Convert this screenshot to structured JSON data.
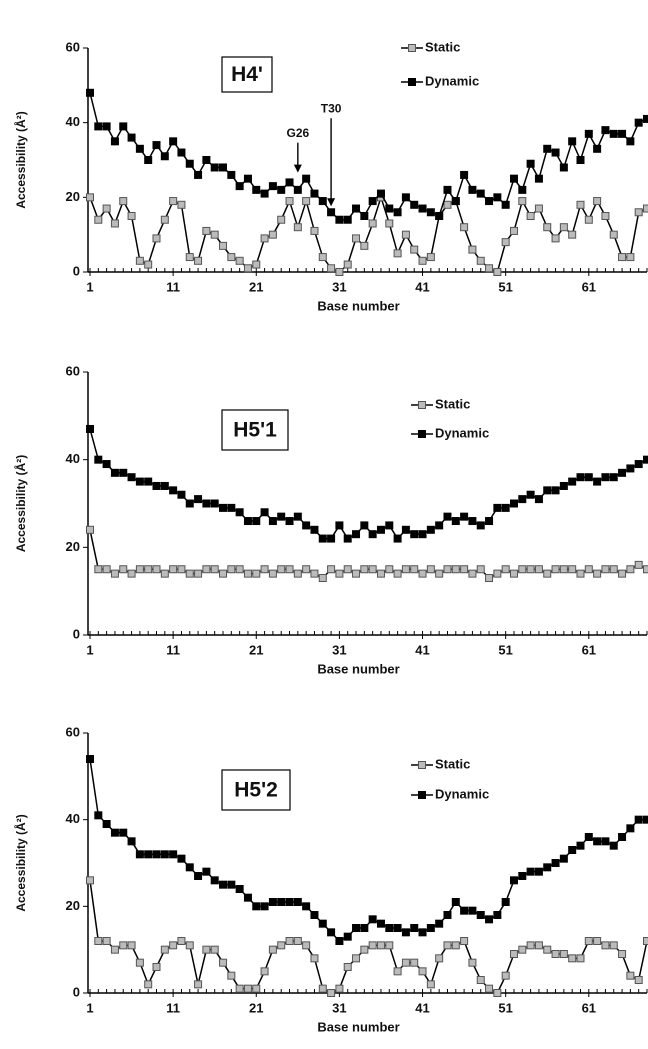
{
  "chart_data": [
    {
      "type": "line",
      "title": "H4'",
      "xlabel": "Base number",
      "ylabel": "Accessibility (Å²)",
      "x": [
        1,
        2,
        3,
        4,
        5,
        6,
        7,
        8,
        9,
        10,
        11,
        12,
        13,
        14,
        15,
        16,
        17,
        18,
        19,
        20,
        21,
        22,
        23,
        24,
        25,
        26,
        27,
        28,
        29,
        30,
        31,
        32,
        33,
        34,
        35,
        36,
        37,
        38,
        39,
        40,
        41,
        42,
        43,
        44,
        45,
        46,
        47,
        48,
        49,
        50,
        51,
        52,
        53,
        54,
        55,
        56,
        57,
        58,
        59,
        60,
        61,
        62,
        63,
        64,
        65,
        66,
        67,
        68
      ],
      "xlim": [
        1,
        68
      ],
      "xticks": [
        1,
        11,
        21,
        31,
        41,
        51,
        61
      ],
      "ylim": [
        0,
        60
      ],
      "yticks": [
        0,
        20,
        40,
        60
      ],
      "legend": "top-right",
      "series": [
        {
          "name": "Static",
          "color": "#bbbbbb",
          "values": [
            20,
            14,
            17,
            13,
            19,
            15,
            3,
            2,
            9,
            14,
            19,
            18,
            4,
            3,
            11,
            10,
            7,
            4,
            3,
            1,
            2,
            9,
            10,
            14,
            19,
            12,
            19,
            11,
            4,
            1,
            0,
            2,
            9,
            7,
            13,
            20,
            13,
            5,
            10,
            6,
            3,
            4,
            15,
            18,
            19,
            12,
            6,
            3,
            1,
            0,
            8,
            11,
            19,
            15,
            17,
            12,
            9,
            12,
            10,
            18,
            14,
            19,
            15,
            10,
            4,
            4,
            16,
            17
          ]
        },
        {
          "name": "Dynamic",
          "color": "#000000",
          "values": [
            48,
            39,
            39,
            35,
            39,
            36,
            33,
            30,
            34,
            31,
            35,
            32,
            29,
            26,
            30,
            28,
            28,
            26,
            23,
            25,
            22,
            21,
            23,
            22,
            24,
            22,
            25,
            21,
            19,
            16,
            14,
            14,
            17,
            15,
            19,
            21,
            17,
            16,
            20,
            18,
            17,
            16,
            15,
            22,
            19,
            26,
            22,
            21,
            19,
            20,
            18,
            25,
            22,
            29,
            25,
            33,
            32,
            28,
            35,
            30,
            37,
            33,
            38,
            37,
            37,
            35,
            40,
            41
          ]
        }
      ],
      "annotations": [
        {
          "label": "G26",
          "x": 26,
          "y": 25
        },
        {
          "label": "T30",
          "x": 30,
          "y": 16
        }
      ]
    },
    {
      "type": "line",
      "title": "H5'1",
      "xlabel": "Base number",
      "ylabel": "Accessibility (Å²)",
      "x": [
        1,
        2,
        3,
        4,
        5,
        6,
        7,
        8,
        9,
        10,
        11,
        12,
        13,
        14,
        15,
        16,
        17,
        18,
        19,
        20,
        21,
        22,
        23,
        24,
        25,
        26,
        27,
        28,
        29,
        30,
        31,
        32,
        33,
        34,
        35,
        36,
        37,
        38,
        39,
        40,
        41,
        42,
        43,
        44,
        45,
        46,
        47,
        48,
        49,
        50,
        51,
        52,
        53,
        54,
        55,
        56,
        57,
        58,
        59,
        60,
        61,
        62,
        63,
        64,
        65,
        66,
        67,
        68
      ],
      "xlim": [
        1,
        68
      ],
      "xticks": [
        1,
        11,
        21,
        31,
        41,
        51,
        61
      ],
      "ylim": [
        0,
        60
      ],
      "yticks": [
        0,
        20,
        40,
        60
      ],
      "legend": "top-right",
      "series": [
        {
          "name": "Static",
          "color": "#bbbbbb",
          "values": [
            24,
            15,
            15,
            14,
            15,
            14,
            15,
            15,
            15,
            14,
            15,
            15,
            14,
            14,
            15,
            15,
            14,
            15,
            15,
            14,
            14,
            15,
            14,
            15,
            15,
            14,
            15,
            14,
            13,
            15,
            14,
            15,
            14,
            15,
            15,
            14,
            15,
            14,
            15,
            15,
            14,
            15,
            14,
            15,
            15,
            15,
            14,
            15,
            13,
            14,
            15,
            14,
            15,
            15,
            15,
            14,
            15,
            15,
            15,
            14,
            15,
            14,
            15,
            15,
            14,
            15,
            16,
            15
          ]
        },
        {
          "name": "Dynamic",
          "color": "#000000",
          "values": [
            47,
            40,
            39,
            37,
            37,
            36,
            35,
            35,
            34,
            34,
            33,
            32,
            30,
            31,
            30,
            30,
            29,
            29,
            28,
            26,
            26,
            28,
            26,
            27,
            26,
            27,
            25,
            24,
            22,
            22,
            25,
            22,
            23,
            25,
            23,
            24,
            25,
            22,
            24,
            23,
            23,
            24,
            25,
            27,
            26,
            27,
            26,
            25,
            26,
            29,
            29,
            30,
            31,
            32,
            31,
            33,
            33,
            34,
            35,
            36,
            36,
            35,
            36,
            36,
            37,
            38,
            39,
            40
          ]
        }
      ]
    },
    {
      "type": "line",
      "title": "H5'2",
      "xlabel": "Base number",
      "ylabel": "Accessibility (Å²)",
      "x": [
        1,
        2,
        3,
        4,
        5,
        6,
        7,
        8,
        9,
        10,
        11,
        12,
        13,
        14,
        15,
        16,
        17,
        18,
        19,
        20,
        21,
        22,
        23,
        24,
        25,
        26,
        27,
        28,
        29,
        30,
        31,
        32,
        33,
        34,
        35,
        36,
        37,
        38,
        39,
        40,
        41,
        42,
        43,
        44,
        45,
        46,
        47,
        48,
        49,
        50,
        51,
        52,
        53,
        54,
        55,
        56,
        57,
        58,
        59,
        60,
        61,
        62,
        63,
        64,
        65,
        66,
        67,
        68
      ],
      "xlim": [
        1,
        68
      ],
      "xticks": [
        1,
        11,
        21,
        31,
        41,
        51,
        61
      ],
      "ylim": [
        0,
        60
      ],
      "yticks": [
        0,
        20,
        40,
        60
      ],
      "legend": "top-right",
      "series": [
        {
          "name": "Static",
          "color": "#bbbbbb",
          "values": [
            26,
            12,
            12,
            10,
            11,
            11,
            7,
            2,
            6,
            10,
            11,
            12,
            11,
            2,
            10,
            10,
            7,
            4,
            1,
            1,
            1,
            5,
            10,
            11,
            12,
            12,
            11,
            8,
            1,
            0,
            1,
            6,
            8,
            10,
            11,
            11,
            11,
            5,
            7,
            7,
            5,
            2,
            8,
            11,
            11,
            12,
            7,
            3,
            1,
            0,
            4,
            9,
            10,
            11,
            11,
            10,
            9,
            9,
            8,
            8,
            12,
            12,
            11,
            11,
            9,
            4,
            3,
            12
          ]
        },
        {
          "name": "Dynamic",
          "color": "#000000",
          "values": [
            54,
            41,
            39,
            37,
            37,
            35,
            32,
            32,
            32,
            32,
            32,
            31,
            29,
            27,
            28,
            26,
            25,
            25,
            24,
            22,
            20,
            20,
            21,
            21,
            21,
            21,
            20,
            18,
            16,
            14,
            12,
            13,
            15,
            15,
            17,
            16,
            15,
            15,
            14,
            15,
            14,
            15,
            16,
            18,
            21,
            19,
            19,
            18,
            17,
            18,
            21,
            26,
            27,
            28,
            28,
            29,
            30,
            31,
            33,
            34,
            36,
            35,
            35,
            34,
            36,
            38,
            40,
            40
          ]
        }
      ]
    }
  ]
}
